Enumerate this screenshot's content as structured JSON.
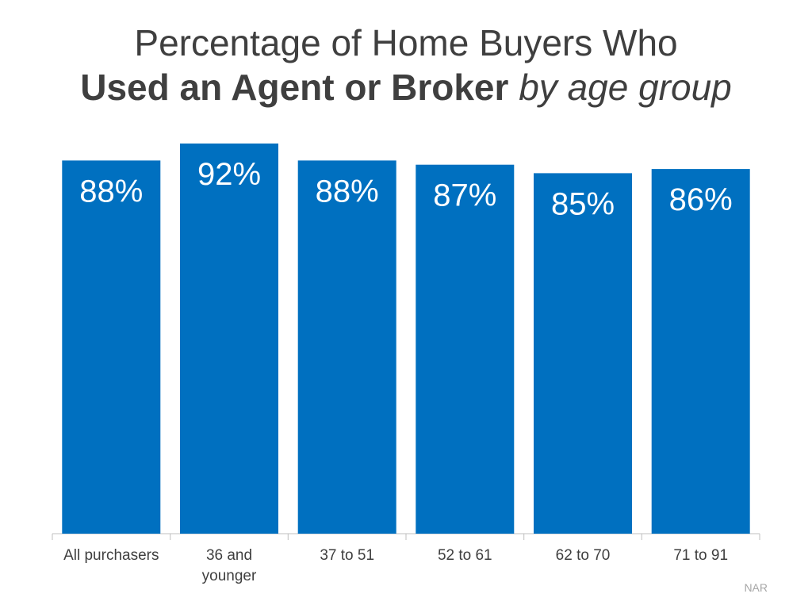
{
  "title": {
    "line1": "Percentage of Home Buyers Who",
    "line2_bold": "Used an Agent or Broker",
    "line2_italic": "by age group"
  },
  "source": "NAR",
  "colors": {
    "bar": "#0070c0",
    "bar_label": "#ffffff",
    "title": "#3f3f3f"
  },
  "chart_data": {
    "type": "bar",
    "title": "Percentage of Home Buyers Who Used an Agent or Broker by age group",
    "categories": [
      [
        "All purchasers"
      ],
      [
        "36 and",
        "younger"
      ],
      [
        "37 to 51"
      ],
      [
        "52 to 61"
      ],
      [
        "62 to 70"
      ],
      [
        "71 to 91"
      ]
    ],
    "values": [
      88,
      92,
      88,
      87,
      85,
      86
    ],
    "data_labels": [
      "88%",
      "92%",
      "88%",
      "87%",
      "85%",
      "86%"
    ],
    "xlabel": "",
    "ylabel": "",
    "ylim": [
      0,
      92
    ],
    "grid": false,
    "legend": "none"
  }
}
